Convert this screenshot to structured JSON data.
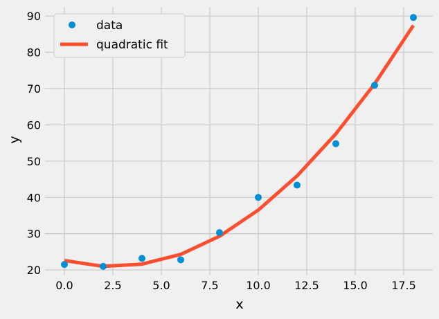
{
  "chart_data": {
    "type": "scatter",
    "title": "",
    "xlabel": "x",
    "ylabel": "y",
    "xlim": [
      -1,
      19
    ],
    "ylim": [
      18.5,
      92.5
    ],
    "xticks": [
      0.0,
      2.5,
      5.0,
      7.5,
      10.0,
      12.5,
      15.0,
      17.5
    ],
    "xtick_labels": [
      "0.0",
      "2.5",
      "5.0",
      "7.5",
      "10.0",
      "12.5",
      "15.0",
      "17.5"
    ],
    "yticks": [
      20,
      30,
      40,
      50,
      60,
      70,
      80,
      90
    ],
    "ytick_labels": [
      "20",
      "30",
      "40",
      "50",
      "60",
      "70",
      "80",
      "90"
    ],
    "grid": true,
    "legend_position": "top-left",
    "series": [
      {
        "name": "data",
        "kind": "scatter",
        "color": "#008fd5",
        "x": [
          0,
          2,
          4,
          6,
          8,
          10,
          12,
          14,
          16,
          18
        ],
        "y": [
          21.5,
          21.0,
          23.2,
          22.8,
          30.3,
          40.0,
          43.4,
          54.8,
          70.9,
          89.6
        ]
      },
      {
        "name": "quadratic fit",
        "kind": "line",
        "color": "#fc4f30",
        "x": [
          0,
          2,
          4,
          6,
          8,
          10,
          12,
          14,
          16,
          18
        ],
        "y": [
          22.6,
          21.0,
          21.6,
          24.3,
          29.3,
          36.5,
          45.9,
          57.5,
          71.3,
          87.4
        ]
      }
    ]
  }
}
